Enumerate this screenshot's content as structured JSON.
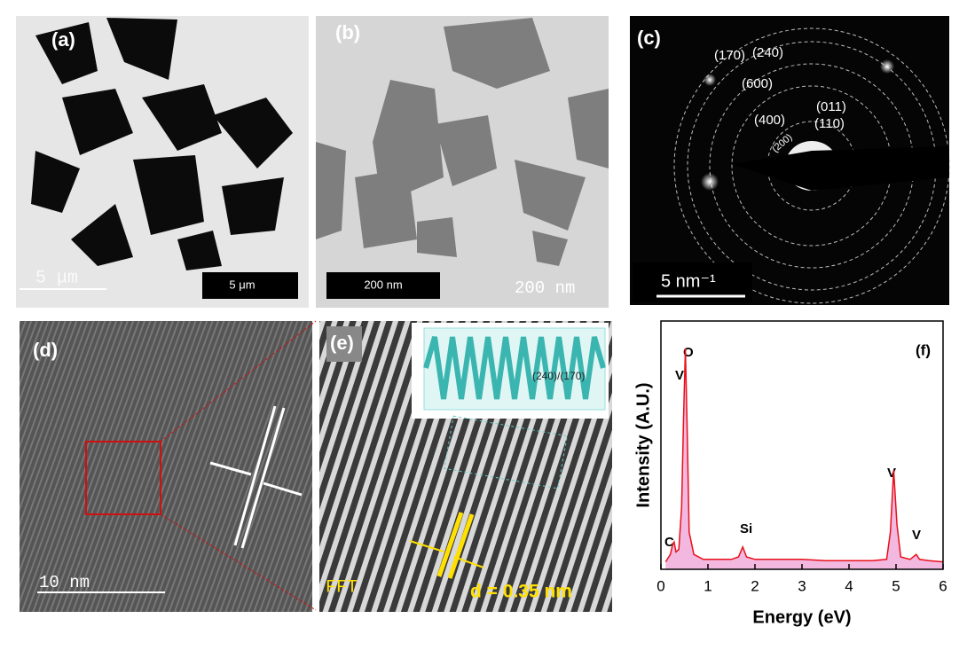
{
  "panels": {
    "a": {
      "label": "(a)",
      "scale_ghost": "5 μm",
      "scale_bar": "5 μm"
    },
    "b": {
      "label": "(b)",
      "scale_bar": "200 nm",
      "scale_ghost": "200 nm"
    },
    "c": {
      "label": "(c)",
      "scale_bar": "5 nm⁻¹",
      "rings": [
        "(170)",
        "(240)",
        "(600)",
        "(400)",
        "(011)",
        "(110)",
        "(200)"
      ]
    },
    "d": {
      "label": "(d)",
      "scale_bar": "10 nm"
    },
    "e": {
      "label": "(e)",
      "inset_label": "(240)/(170)",
      "fft": "FFT",
      "spacing": "d = 0.35 nm"
    }
  },
  "chart_data": {
    "type": "line",
    "panel_label": "(f)",
    "x_label": "Energy (eV)",
    "y_label": "Intensity (A.U.)",
    "x": [
      0.1,
      0.2,
      0.25,
      0.28,
      0.32,
      0.38,
      0.44,
      0.48,
      0.52,
      0.56,
      0.6,
      0.7,
      0.9,
      1.2,
      1.5,
      1.65,
      1.74,
      1.82,
      2.0,
      2.5,
      3.0,
      3.5,
      4.0,
      4.5,
      4.8,
      4.88,
      4.95,
      5.02,
      5.1,
      5.3,
      5.43,
      5.5,
      5.7,
      6.0
    ],
    "values": [
      3,
      6,
      10,
      11,
      7,
      8,
      25,
      60,
      89,
      55,
      15,
      6,
      4,
      4,
      4,
      5,
      9,
      5,
      4,
      4,
      4,
      3.5,
      3.5,
      3.5,
      4,
      15,
      40,
      18,
      5,
      4,
      6,
      4,
      3.5,
      3
    ],
    "color": "#e8101a",
    "fill": "#f2b8e0",
    "xlim": [
      0,
      6
    ],
    "xticks": [
      0,
      1,
      2,
      3,
      4,
      5,
      6
    ],
    "ylim": [
      0,
      100
    ],
    "peaks": [
      "O",
      "V",
      "Si",
      "C",
      "V",
      "V"
    ]
  }
}
